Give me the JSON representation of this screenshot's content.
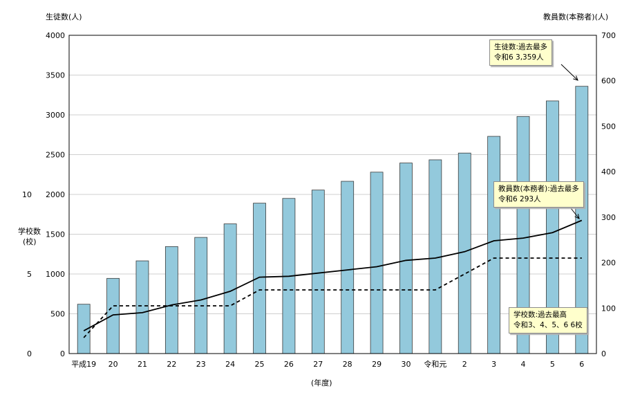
{
  "chart_data": {
    "type": "bar",
    "categories": [
      "平成19",
      "20",
      "21",
      "22",
      "23",
      "24",
      "25",
      "26",
      "27",
      "28",
      "29",
      "30",
      "令和元",
      "2",
      "3",
      "4",
      "5",
      "6"
    ],
    "xlabel": "(年度)",
    "grid": "horizontal",
    "series": [
      {
        "name": "生徒数",
        "type": "bar",
        "axis": "left",
        "color": "#93c9dc",
        "values": [
          620,
          945,
          1165,
          1345,
          1460,
          1630,
          1890,
          1950,
          2055,
          2165,
          2280,
          2395,
          2435,
          2520,
          2730,
          2980,
          3175,
          3359
        ]
      },
      {
        "name": "教員数(本務者)",
        "type": "line",
        "style": "solid",
        "axis": "right",
        "color": "#000000",
        "values": [
          50,
          85,
          90,
          107,
          118,
          137,
          168,
          170,
          177,
          184,
          191,
          205,
          210,
          224,
          248,
          254,
          266,
          293
        ]
      },
      {
        "name": "学校数",
        "type": "line",
        "style": "dashed",
        "axis": "school",
        "color": "#000000",
        "values": [
          1,
          3,
          3,
          3,
          3,
          3,
          4,
          4,
          4,
          4,
          4,
          4,
          4,
          5,
          6,
          6,
          6,
          6
        ]
      }
    ],
    "axes": {
      "left": {
        "label": "生徒数(人)",
        "ylim": [
          0,
          4000
        ],
        "ticks": [
          0,
          500,
          1000,
          1500,
          2000,
          2500,
          3000,
          3500,
          4000
        ]
      },
      "right": {
        "label": "教員数(本務者)(人)",
        "ylim": [
          0,
          700
        ],
        "ticks": [
          0,
          100,
          200,
          300,
          400,
          500,
          600,
          700
        ]
      },
      "school": {
        "label_line1": "学校数",
        "label_line2": "(校)",
        "ylim": [
          0,
          20
        ],
        "ticks": [
          0,
          5,
          10
        ]
      }
    },
    "annotations": [
      {
        "line1": "生徒数:過去最多",
        "line2": "令和6  3,359人"
      },
      {
        "line1": "教員数(本務者):過去最多",
        "line2": "令和6  293人"
      },
      {
        "line1": "学校数:過去最高",
        "line2": "令和3、4、5、6  6校"
      }
    ]
  }
}
